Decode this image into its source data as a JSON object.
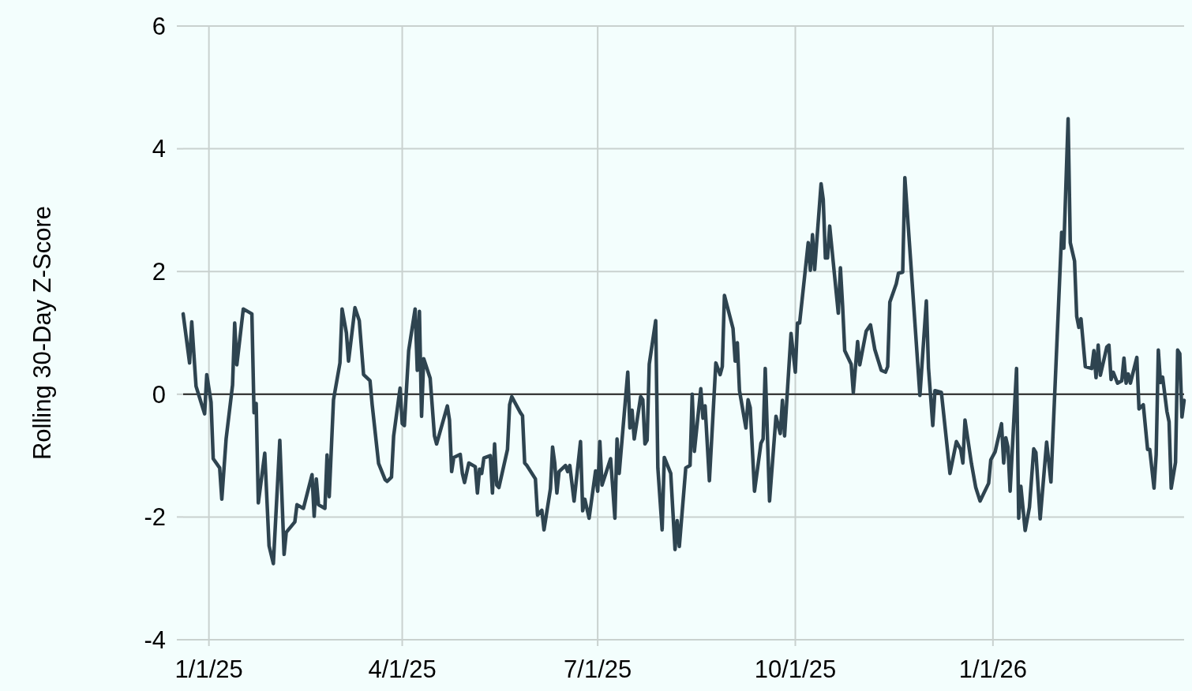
{
  "chart_data": {
    "type": "line",
    "ylabel": "Rolling 30-Day Z-Score",
    "x": [
      "2024-12-20",
      "2024-12-23",
      "2024-12-24",
      "2024-12-26",
      "2024-12-30",
      "2024-12-31",
      "2025-01-02",
      "2025-01-03",
      "2025-01-06",
      "2025-01-07",
      "2025-01-09",
      "2025-01-12",
      "2025-01-13",
      "2025-01-14",
      "2025-01-17",
      "2025-01-21",
      "2025-01-22",
      "2025-01-23",
      "2025-01-24",
      "2025-01-27",
      "2025-01-29",
      "2025-01-31",
      "2025-02-03",
      "2025-02-05",
      "2025-02-06",
      "2025-02-10",
      "2025-02-11",
      "2025-02-14",
      "2025-02-18",
      "2025-02-19",
      "2025-02-20",
      "2025-02-21",
      "2025-02-24",
      "2025-02-25",
      "2025-02-26",
      "2025-02-28",
      "2025-03-03",
      "2025-03-04",
      "2025-03-06",
      "2025-03-07",
      "2025-03-10",
      "2025-03-12",
      "2025-03-14",
      "2025-03-17",
      "2025-03-18",
      "2025-03-21",
      "2025-03-24",
      "2025-03-25",
      "2025-03-27",
      "2025-03-28",
      "2025-03-31",
      "2025-04-01",
      "2025-04-02",
      "2025-04-04",
      "2025-04-07",
      "2025-04-08",
      "2025-04-09",
      "2025-04-10",
      "2025-04-11",
      "2025-04-14",
      "2025-04-16",
      "2025-04-17",
      "2025-04-22",
      "2025-04-23",
      "2025-04-24",
      "2025-04-25",
      "2025-04-28",
      "2025-04-29",
      "2025-04-30",
      "2025-05-02",
      "2025-05-05",
      "2025-05-06",
      "2025-05-07",
      "2025-05-08",
      "2025-05-09",
      "2025-05-12",
      "2025-05-13",
      "2025-05-14",
      "2025-05-15",
      "2025-05-16",
      "2025-05-20",
      "2025-05-21",
      "2025-05-22",
      "2025-05-26",
      "2025-05-27",
      "2025-05-28",
      "2025-05-29",
      "2025-06-02",
      "2025-06-03",
      "2025-06-05",
      "2025-06-06",
      "2025-06-09",
      "2025-06-10",
      "2025-06-11",
      "2025-06-12",
      "2025-06-13",
      "2025-06-16",
      "2025-06-17",
      "2025-06-18",
      "2025-06-20",
      "2025-06-23",
      "2025-06-24",
      "2025-06-25",
      "2025-06-27",
      "2025-06-30",
      "2025-07-01",
      "2025-07-02",
      "2025-07-03",
      "2025-07-07",
      "2025-07-08",
      "2025-07-09",
      "2025-07-10",
      "2025-07-11",
      "2025-07-15",
      "2025-07-16",
      "2025-07-17",
      "2025-07-18",
      "2025-07-21",
      "2025-07-22",
      "2025-07-23",
      "2025-07-24",
      "2025-07-25",
      "2025-07-28",
      "2025-07-29",
      "2025-07-31",
      "2025-08-01",
      "2025-08-04",
      "2025-08-06",
      "2025-08-07",
      "2025-08-08",
      "2025-08-11",
      "2025-08-13",
      "2025-08-14",
      "2025-08-15",
      "2025-08-18",
      "2025-08-19",
      "2025-08-20",
      "2025-08-22",
      "2025-08-25",
      "2025-08-27",
      "2025-08-28",
      "2025-08-29",
      "2025-09-02",
      "2025-09-03",
      "2025-09-04",
      "2025-09-05",
      "2025-09-08",
      "2025-09-09",
      "2025-09-10",
      "2025-09-12",
      "2025-09-15",
      "2025-09-16",
      "2025-09-17",
      "2025-09-19",
      "2025-09-22",
      "2025-09-24",
      "2025-09-25",
      "2025-09-26",
      "2025-09-29",
      "2025-10-01",
      "2025-10-02",
      "2025-10-03",
      "2025-10-07",
      "2025-10-08",
      "2025-10-09",
      "2025-10-10",
      "2025-10-13",
      "2025-10-14",
      "2025-10-15",
      "2025-10-16",
      "2025-10-17",
      "2025-10-21",
      "2025-10-22",
      "2025-10-23",
      "2025-10-24",
      "2025-10-27",
      "2025-10-28",
      "2025-10-30",
      "2025-10-31",
      "2025-11-03",
      "2025-11-05",
      "2025-11-07",
      "2025-11-10",
      "2025-11-12",
      "2025-11-13",
      "2025-11-14",
      "2025-11-17",
      "2025-11-18",
      "2025-11-20",
      "2025-11-21",
      "2025-11-24",
      "2025-11-28",
      "2025-12-01",
      "2025-12-02",
      "2025-12-04",
      "2025-12-05",
      "2025-12-08",
      "2025-12-12",
      "2025-12-15",
      "2025-12-17",
      "2025-12-18",
      "2025-12-19",
      "2025-12-22",
      "2025-12-24",
      "2025-12-26",
      "2025-12-30",
      "2025-12-31",
      "2026-01-02",
      "2026-01-05",
      "2026-01-06",
      "2026-01-07",
      "2026-01-08",
      "2026-01-09",
      "2026-01-12",
      "2026-01-13",
      "2026-01-14",
      "2026-01-16",
      "2026-01-18",
      "2026-01-20",
      "2026-01-21",
      "2026-01-23",
      "2026-01-26",
      "2026-01-28",
      "2026-02-02",
      "2026-02-03",
      "2026-02-05",
      "2026-02-06",
      "2026-02-08",
      "2026-02-09",
      "2026-02-10",
      "2026-02-11",
      "2026-02-13",
      "2026-02-16",
      "2026-02-17",
      "2026-02-18",
      "2026-02-19",
      "2026-02-20",
      "2026-02-23",
      "2026-02-24",
      "2026-02-25",
      "2026-02-26",
      "2026-02-28",
      "2026-03-02",
      "2026-03-03",
      "2026-03-04",
      "2026-03-05",
      "2026-03-06",
      "2026-03-09",
      "2026-03-10",
      "2026-03-12",
      "2026-03-14",
      "2026-03-15",
      "2026-03-17",
      "2026-03-18",
      "2026-03-19",
      "2026-03-20",
      "2026-03-21",
      "2026-03-23",
      "2026-03-24",
      "2026-03-25",
      "2026-03-27",
      "2026-03-28",
      "2026-03-29",
      "2026-03-30",
      "2026-03-31"
    ],
    "series": [
      {
        "color": "#2e4450",
        "values": [
          1.31,
          0.51,
          1.18,
          0.13,
          -0.32,
          0.32,
          -0.13,
          -1.05,
          -1.2,
          -1.71,
          -0.73,
          0.15,
          1.16,
          0.48,
          1.39,
          1.31,
          -0.3,
          -0.15,
          -1.77,
          -0.96,
          -2.47,
          -2.76,
          -0.75,
          -2.61,
          -2.25,
          -2.08,
          -1.8,
          -1.86,
          -1.31,
          -1.99,
          -1.38,
          -1.8,
          -1.86,
          -0.99,
          -1.67,
          -0.09,
          0.51,
          1.39,
          1.0,
          0.54,
          1.41,
          1.2,
          0.32,
          0.22,
          -0.17,
          -1.13,
          -1.39,
          -1.42,
          -1.35,
          -0.68,
          0.1,
          -0.48,
          -0.51,
          0.71,
          1.39,
          0.39,
          1.35,
          -0.36,
          0.58,
          0.26,
          -0.68,
          -0.81,
          -0.19,
          -0.42,
          -1.26,
          -1.03,
          -0.98,
          -1.29,
          -1.44,
          -1.12,
          -1.18,
          -1.61,
          -1.22,
          -1.29,
          -1.04,
          -1.0,
          -1.61,
          -0.81,
          -1.48,
          -1.52,
          -0.9,
          -0.17,
          -0.04,
          -0.3,
          -0.35,
          -1.12,
          -1.16,
          -1.38,
          -1.97,
          -1.89,
          -2.21,
          -1.54,
          -0.86,
          -1.12,
          -1.61,
          -1.26,
          -1.16,
          -1.26,
          -1.16,
          -1.74,
          -0.77,
          -1.9,
          -1.71,
          -2.02,
          -1.25,
          -1.58,
          -0.77,
          -1.48,
          -1.05,
          -1.52,
          -2.02,
          -0.73,
          -1.29,
          0.36,
          -0.55,
          -0.26,
          -0.73,
          -0.04,
          -0.09,
          -0.81,
          -0.75,
          0.49,
          1.2,
          -1.2,
          -2.21,
          -1.03,
          -1.29,
          -2.53,
          -2.06,
          -2.48,
          -1.2,
          -1.16,
          0,
          -0.93,
          0.09,
          -0.39,
          -0.19,
          -1.41,
          0.51,
          0.32,
          0.45,
          1.61,
          1.07,
          0.54,
          0.84,
          0.06,
          -0.55,
          -0.09,
          -0.22,
          -1.58,
          -0.8,
          -0.73,
          0.42,
          -1.74,
          -0.36,
          -0.64,
          -0.1,
          -0.68,
          0.99,
          0.36,
          1.16,
          1.16,
          2.47,
          2.02,
          2.6,
          2.03,
          3.43,
          3.17,
          2.22,
          2.22,
          2.74,
          1.32,
          2.06,
          1.45,
          0.71,
          0.49,
          0.03,
          0.86,
          0.48,
          1.03,
          1.13,
          0.73,
          0.39,
          0.36,
          0.45,
          1.5,
          1.8,
          1.97,
          1.99,
          3.53,
          2.02,
          -0.02,
          1.52,
          0.43,
          -0.51,
          0.06,
          0.03,
          -1.29,
          -0.77,
          -0.9,
          -1.12,
          -0.42,
          -1.13,
          -1.52,
          -1.74,
          -1.45,
          -1.07,
          -0.94,
          -0.48,
          -1.12,
          -0.71,
          -0.86,
          -1.58,
          0.42,
          -2.02,
          -1.5,
          -2.22,
          -1.84,
          -0.89,
          -0.95,
          -2.03,
          -0.78,
          -1.43,
          2.64,
          2.38,
          4.49,
          2.47,
          2.17,
          1.27,
          1.09,
          1.23,
          0.45,
          0.42,
          0.71,
          0.27,
          0.8,
          0.31,
          0.77,
          0.8,
          0.24,
          0.36,
          0.18,
          0.22,
          0.59,
          0.18,
          0.33,
          0.18,
          0.6,
          -0.24,
          -0.17,
          -0.9,
          -0.9,
          -1.53,
          -0.98,
          0.72,
          0.19,
          0.28,
          -0.28,
          -0.45,
          -1.53,
          -1.11,
          0.72,
          0.66,
          -0.37,
          -0.1
        ]
      }
    ],
    "xlim": [
      "2024-12-20",
      "2026-03-31"
    ],
    "xticks": [
      {
        "value": "2025-01-01",
        "label": "1/1/25"
      },
      {
        "value": "2025-04-01",
        "label": "4/1/25"
      },
      {
        "value": "2025-07-01",
        "label": "7/1/25"
      },
      {
        "value": "2025-10-01",
        "label": "10/1/25"
      },
      {
        "value": "2026-01-01",
        "label": "1/1/26"
      }
    ],
    "ylim": [
      -4,
      6
    ],
    "yticks": [
      -4,
      -2,
      0,
      2,
      4,
      6
    ],
    "grid": true,
    "ref_lines": [
      {
        "axis": "y",
        "value": 0,
        "color": "#222222"
      }
    ]
  }
}
